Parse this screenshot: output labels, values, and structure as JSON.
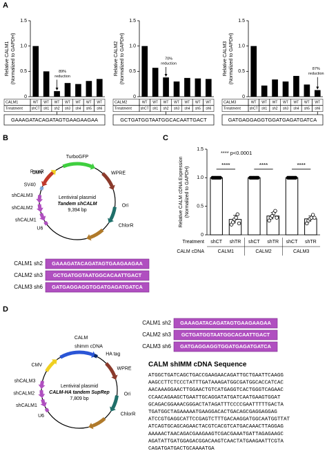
{
  "panels": {
    "a": "A",
    "b": "B",
    "c": "C",
    "d": "D"
  },
  "chart_data": [
    {
      "type": "bar",
      "y_label": [
        "Relative CALM1",
        "(Normalized to GAPDH)"
      ],
      "ylim": [
        0,
        1.5
      ],
      "yticks": [
        0,
        0.5,
        {
          "value": 1,
          "label": "1.0"
        },
        1.5
      ],
      "genotype_label": "CALM1",
      "genotypes": [
        "WT",
        "WT",
        "WT",
        "WT",
        "WT",
        "WT",
        "WT"
      ],
      "category_label": "Treatment",
      "categories": [
        "shCT",
        "sh1",
        "sh2",
        "sh3",
        "sh4",
        "sh5",
        "sh6"
      ],
      "values": [
        1.0,
        0.5,
        0.11,
        0.27,
        0.25,
        0.31,
        0.35
      ],
      "color": "#000000",
      "annotation": [
        "89%",
        "reduction"
      ],
      "sequence": "GAAAGATACAGATAGTGAAGAAGAA"
    },
    {
      "type": "bar",
      "y_label": [
        "Relative CALM2",
        "(Normalized to GAPDH)"
      ],
      "ylim": [
        0,
        1.5
      ],
      "yticks": [
        0,
        0.5,
        {
          "value": 1,
          "label": "1.0"
        },
        1.5
      ],
      "genotype_label": "CALM2",
      "genotypes": [
        "WT",
        "WT",
        "WT",
        "WT",
        "WT",
        "WT",
        "WT"
      ],
      "category_label": "Treatment",
      "categories": [
        "shCT",
        "sh1",
        "sh2",
        "sh3",
        "sh4",
        "sh5",
        "sh6"
      ],
      "values": [
        1.0,
        0.57,
        0.38,
        0.3,
        0.37,
        0.36,
        0.35
      ],
      "color": "#000000",
      "annotation": [
        "70%",
        "reduction"
      ],
      "sequence": "GCTGATGGTAATGGCACAATTGACT"
    },
    {
      "type": "bar",
      "y_label": [
        "Relative CALM3",
        "(Normalized to GAPDH)"
      ],
      "ylim": [
        0,
        1.5
      ],
      "yticks": [
        0,
        0.5,
        {
          "value": 1,
          "label": "1.0"
        },
        1.5
      ],
      "genotype_label": "CALM3",
      "genotypes": [
        "WT",
        "WT",
        "WT",
        "WT",
        "WT",
        "WT",
        "WT"
      ],
      "category_label": "Treatment",
      "categories": [
        "shCT",
        "sh1",
        "sh2",
        "sh3",
        "sh4",
        "sh5",
        "sh6"
      ],
      "values": [
        1.0,
        0.22,
        0.34,
        0.3,
        0.41,
        0.24,
        0.13
      ],
      "color": "#000000",
      "annotation": [
        "87%",
        "reduction"
      ],
      "sequence": "GATGAGGAGGTGGATGAGATGATCA"
    },
    {
      "type": "bar_points",
      "y_label": [
        "Relative CALM cDNA Expression",
        "(Normalized to GAPDH)"
      ],
      "ylim": [
        0,
        1.5
      ],
      "yticks": [
        0,
        0.5,
        {
          "value": 1,
          "label": "1.0"
        },
        1.5
      ],
      "annotation": "**** p<0.0001",
      "significance": [
        "****",
        "****",
        "****"
      ],
      "category_label": "Treatment",
      "categories": [
        "shCT",
        "shTR",
        "shCT",
        "shTR",
        "shCT",
        "shTR"
      ],
      "group_label": "CALM cDNA",
      "groups": [
        "CALM1",
        "CALM2",
        "CALM3"
      ],
      "values": [
        1.0,
        0.27,
        1.0,
        0.33,
        1.0,
        0.28
      ],
      "errors": [
        0.01,
        0.07,
        0.01,
        0.06,
        0.01,
        0.05
      ],
      "points": [
        [
          1,
          1,
          1,
          1,
          1,
          1
        ],
        [
          0.18,
          0.22,
          0.27,
          0.3,
          0.36,
          0.2
        ],
        [
          1,
          1,
          1,
          1,
          1,
          1
        ],
        [
          0.25,
          0.3,
          0.33,
          0.38,
          0.42,
          0.3
        ],
        [
          1,
          1,
          1,
          1,
          1,
          1
        ],
        [
          0.2,
          0.25,
          0.28,
          0.3,
          0.35,
          0.3
        ]
      ],
      "color": "#ffffff"
    }
  ],
  "plasmid_b": {
    "features": [
      "CMV",
      "TurboGFP",
      "WPRE",
      "Ori",
      "ChlorR",
      "U6",
      "shCALM1",
      "shCALM2",
      "shCALM3",
      "SV40",
      "PuroR"
    ],
    "center": [
      "Lentiviral plasmid",
      "Tandem shCALM",
      "9,394 bp"
    ]
  },
  "sequences_b": {
    "rows": [
      [
        "CALM1 sh2",
        "GAAAGATACAGATAGTGAAGAAGAA"
      ],
      [
        "CALM2 sh3",
        "GCTGATGGTAATGGCACAATTGACT"
      ],
      [
        "CALM3 sh6",
        "GATGAGGAGGTGGATGAGATGATCA"
      ]
    ]
  },
  "plasmid_d": {
    "features": [
      "CMV",
      "shimm cDNA",
      "HA tag",
      "WPRE",
      "Ori",
      "ChlorR",
      "U6",
      "shCALM1",
      "shCALM2",
      "shCALM3",
      "CALM"
    ],
    "center": [
      "Lentiviral plasmid",
      "CALM-HA tandem SupRep",
      "7,809 bp"
    ]
  },
  "sequences_d": {
    "rows": [
      [
        "CALM1 sh2",
        "GAAAGATACAGATAGTGAAGAAGAA"
      ],
      [
        "CALM2 sh3",
        "GCTGATGGTAATGGCACAATTGACT"
      ],
      [
        "CALM3 sh6",
        "GATGAGGAGGTGGATGAGATGATCA"
      ]
    ]
  },
  "cdna": {
    "title": "CALM shIMM cDNA Sequence",
    "lines": [
      "ATGGCTGATCAGCTGACCGAAGAACAGATTGCTGAATTCAAGG",
      "AAGCCTTCTCCCTATTTGATAAAGATGGCGATGGCACCATCAC",
      "AACAAAGGAACTTGGAACTGTCATGAGGTCACTGGGTCAGAAC",
      "CCAACAGAAGCTGAATTGCAGGATATGATCAATGAAGTGGAT",
      "GCAGACGGAAACGGGACTATAGATTTCCCCGAATTTTTGACTA",
      "TGATGGCTAGAAAAATGAAGGACACTGACAGCGAGGAGGAG",
      "ATCCGTGAGGCATTCCGAGTCTTTGACAAGGATGGCAATGGTTAT",
      "ATCAGTGCAGCAGAACTACGTCACGTCATGACAAACTTAGGAG",
      "AAAAACTAACAGACGAAGAAGTCGACGAAATGATTAGAGAAGC",
      "AGATATTGATGGAGACGGACAAGTCAACTATGAAGAATTCGTA",
      "CAGATGATGACTGCAAAATGA"
    ]
  }
}
